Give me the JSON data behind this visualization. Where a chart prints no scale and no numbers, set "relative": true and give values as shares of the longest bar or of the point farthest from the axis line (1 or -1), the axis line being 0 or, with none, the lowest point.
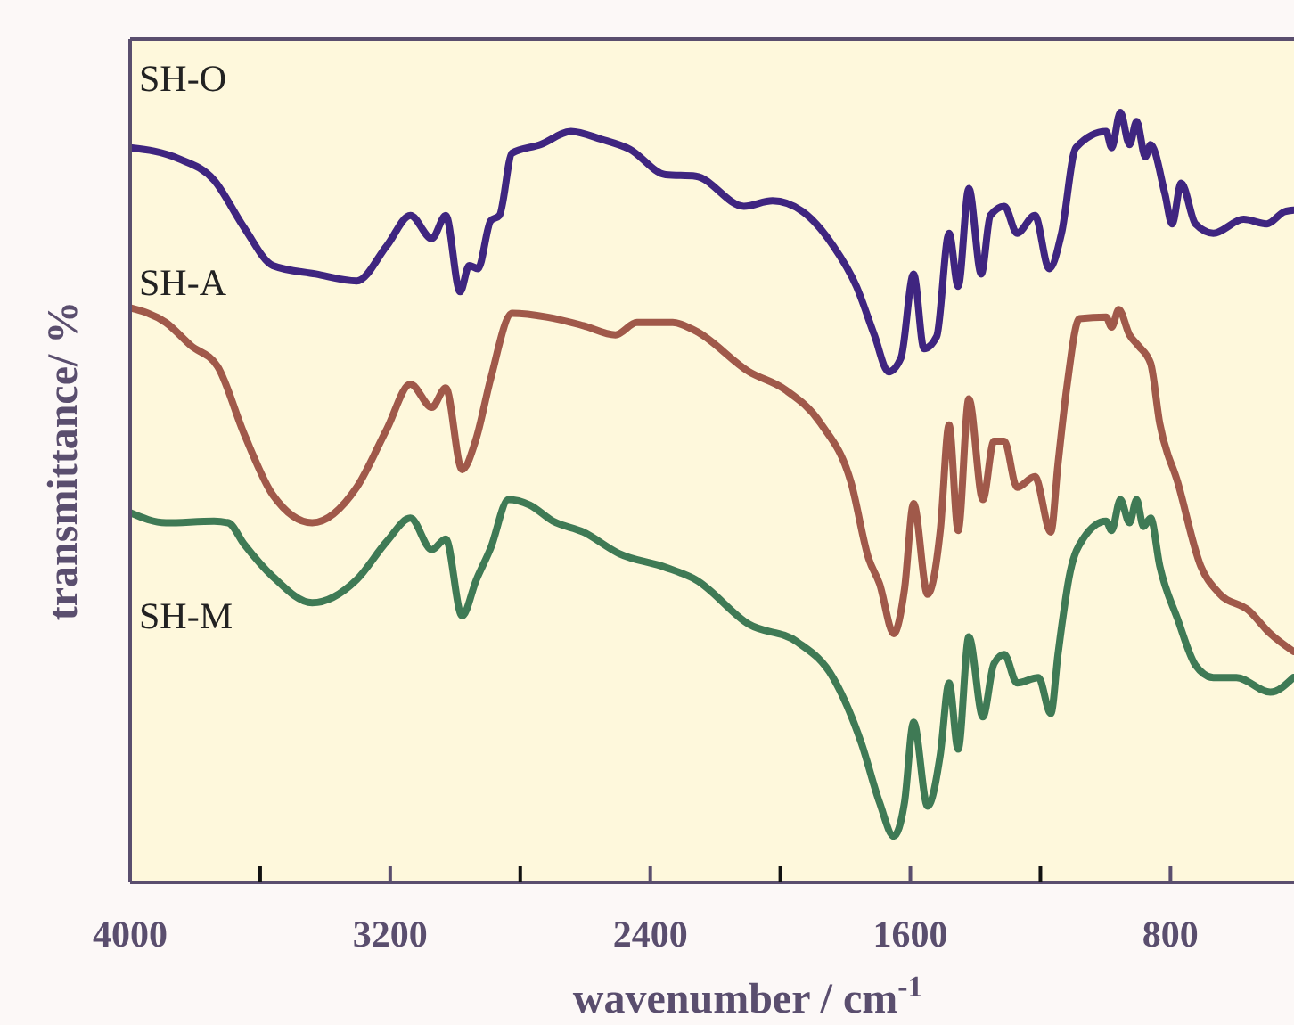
{
  "chart_data": {
    "type": "line",
    "relative": true,
    "xlabel": "wavenumber / cm$^{-1}$",
    "ylabel": "transmittance/ %",
    "xlim": [
      4000,
      420
    ],
    "xticks": [
      4000,
      {
        "value": 3600,
        "label": null
      },
      3200,
      {
        "value": 2800,
        "label": null
      },
      2400,
      {
        "value": 2000,
        "label": null
      },
      1600,
      {
        "value": 1200,
        "label": null
      },
      800
    ],
    "tick_labels": "x",
    "grid": false,
    "marker": "none",
    "line_style": "solid",
    "series": [
      {
        "name": "SH-O",
        "color": "#3f2580",
        "x": [
          4000,
          3852,
          3742,
          3649,
          3561,
          3429,
          3303,
          3210,
          3138,
          3072,
          3029,
          2985,
          2957,
          2930,
          2891,
          2864,
          2825,
          2738,
          2644,
          2551,
          2463,
          2353,
          2260,
          2112,
          2024,
          1931,
          1838,
          1766,
          1711,
          1667,
          1629,
          1590,
          1558,
          1519,
          1481,
          1453,
          1420,
          1382,
          1354,
          1311,
          1272,
          1217,
          1173,
          1135,
          1091,
          998,
          981,
          954,
          926,
          904,
          877,
          861,
          817,
          795,
          767,
          723,
          668,
          575,
          504,
          449,
          420
        ],
        "values": [
          0.954,
          0.94,
          0.912,
          0.85,
          0.801,
          0.79,
          0.781,
          0.827,
          0.866,
          0.836,
          0.866,
          0.767,
          0.801,
          0.797,
          0.859,
          0.866,
          0.947,
          0.958,
          0.975,
          0.965,
          0.952,
          0.919,
          0.917,
          0.878,
          0.885,
          0.871,
          0.827,
          0.774,
          0.711,
          0.663,
          0.681,
          0.79,
          0.693,
          0.709,
          0.843,
          0.774,
          0.901,
          0.79,
          0.866,
          0.878,
          0.843,
          0.866,
          0.797,
          0.843,
          0.954,
          0.975,
          0.954,
          1,
          0.958,
          0.988,
          0.942,
          0.958,
          0.894,
          0.855,
          0.908,
          0.855,
          0.843,
          0.861,
          0.855,
          0.871,
          0.873
        ]
      },
      {
        "name": "SH-A",
        "color": "#a0594a",
        "x": [
          4000,
          3890,
          3813,
          3731,
          3649,
          3561,
          3440,
          3303,
          3210,
          3138,
          3072,
          3029,
          2979,
          2935,
          2891,
          2825,
          2716,
          2606,
          2507,
          2441,
          2331,
          2260,
          2096,
          1986,
          1876,
          1783,
          1728,
          1695,
          1651,
          1618,
          1590,
          1547,
          1508,
          1481,
          1453,
          1420,
          1377,
          1343,
          1311,
          1272,
          1217,
          1168,
          1146,
          1119,
          1080,
          998,
          981,
          959,
          926,
          899,
          861,
          833,
          778,
          707,
          652,
          559,
          493,
          422
        ],
        "values": [
          0.746,
          0.727,
          0.697,
          0.67,
          0.582,
          0.503,
          0.467,
          0.513,
          0.589,
          0.647,
          0.617,
          0.642,
          0.536,
          0.577,
          0.654,
          0.739,
          0.734,
          0.723,
          0.711,
          0.727,
          0.727,
          0.716,
          0.663,
          0.64,
          0.596,
          0.52,
          0.42,
          0.388,
          0.323,
          0.381,
          0.492,
          0.374,
          0.457,
          0.594,
          0.457,
          0.628,
          0.497,
          0.573,
          0.573,
          0.513,
          0.527,
          0.455,
          0.543,
          0.642,
          0.732,
          0.734,
          0.721,
          0.744,
          0.711,
          0.697,
          0.674,
          0.596,
          0.52,
          0.411,
          0.376,
          0.353,
          0.323,
          0.3
        ]
      },
      {
        "name": "SH-M",
        "color": "#3f7a55",
        "x": [
          4000,
          3890,
          3742,
          3698,
          3649,
          3561,
          3440,
          3303,
          3210,
          3138,
          3072,
          3029,
          2979,
          2935,
          2891,
          2836,
          2771,
          2699,
          2606,
          2496,
          2353,
          2260,
          2096,
          1947,
          1838,
          1750,
          1695,
          1651,
          1618,
          1590,
          1547,
          1508,
          1481,
          1453,
          1420,
          1377,
          1343,
          1311,
          1272,
          1206,
          1168,
          1146,
          1108,
          1069,
          998,
          981,
          954,
          926,
          904,
          883,
          861,
          833,
          778,
          723,
          668,
          597,
          493,
          422
        ],
        "values": [
          0.48,
          0.467,
          0.469,
          0.467,
          0.439,
          0.397,
          0.363,
          0.393,
          0.443,
          0.473,
          0.432,
          0.446,
          0.346,
          0.393,
          0.434,
          0.497,
          0.49,
          0.469,
          0.455,
          0.427,
          0.409,
          0.393,
          0.335,
          0.312,
          0.266,
          0.18,
          0.104,
          0.06,
          0.104,
          0.208,
          0.099,
          0.166,
          0.259,
          0.173,
          0.319,
          0.215,
          0.284,
          0.296,
          0.259,
          0.266,
          0.219,
          0.296,
          0.404,
          0.446,
          0.469,
          0.457,
          0.497,
          0.467,
          0.497,
          0.462,
          0.473,
          0.411,
          0.342,
          0.282,
          0.266,
          0.266,
          0.247,
          0.266
        ]
      }
    ]
  }
}
